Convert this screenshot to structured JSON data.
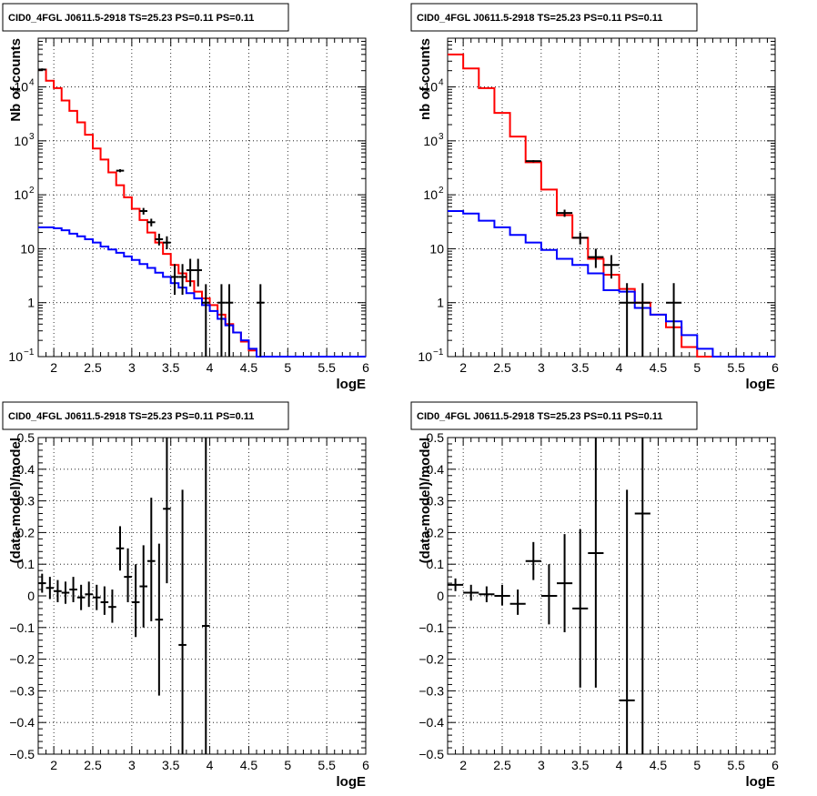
{
  "chart_data": [
    {
      "type": "line",
      "title": "CID0_4FGL J0611.5-2918 TS=25.23 PS=0.11 PS=0.11",
      "xlabel": "logE",
      "ylabel": "Nb of counts",
      "xlim": [
        1.8,
        6.0
      ],
      "ylim": [
        0.1,
        80000
      ],
      "ylog": true,
      "grid": true,
      "xticks": [
        "2",
        "2.5",
        "3",
        "3.5",
        "4",
        "4.5",
        "5",
        "5.5",
        "6"
      ],
      "yticks": [
        {
          "value": 0.1,
          "base": "10",
          "exp": "−1"
        },
        {
          "value": 1,
          "label": "1"
        },
        {
          "value": 10,
          "label": "10"
        },
        {
          "value": 100,
          "base": "10",
          "exp": "2"
        },
        {
          "value": 1000,
          "base": "10",
          "exp": "3"
        },
        {
          "value": 10000,
          "base": "10",
          "exp": "4"
        }
      ],
      "bin_edges": [
        1.8,
        1.9,
        2.0,
        2.1,
        2.2,
        2.3,
        2.4,
        2.5,
        2.6,
        2.7,
        2.8,
        2.9,
        3.0,
        3.1,
        3.2,
        3.3,
        3.4,
        3.5,
        3.6,
        3.7,
        3.8,
        3.9,
        4.0,
        4.1,
        4.2,
        4.3,
        4.4,
        4.5,
        4.6,
        4.7,
        4.8,
        4.9,
        5.0,
        5.1,
        5.2,
        5.3,
        5.4,
        5.5,
        5.6,
        5.7,
        5.8,
        5.9,
        6.0
      ],
      "series": [
        {
          "color": "#ff0000",
          "style": "step",
          "values": [
            21000,
            13000,
            9500,
            5600,
            3600,
            2200,
            1300,
            720,
            450,
            260,
            150,
            90,
            55,
            34,
            20,
            13,
            8,
            5,
            3.5,
            2.5,
            1.6,
            1.2,
            0.9,
            0.6,
            0.4,
            0.28,
            0.19,
            0.13,
            0.1,
            0.1,
            0.1,
            0.1,
            0.1,
            0.1,
            0.1,
            0.1,
            0.1,
            0.1,
            0.1,
            0.1,
            0.1,
            0.1
          ]
        },
        {
          "color": "#0000ff",
          "style": "step",
          "values": [
            25,
            25,
            24,
            22,
            19,
            17,
            15,
            13,
            11,
            9.7,
            8.4,
            7.2,
            6.2,
            5.2,
            4.4,
            3.6,
            3.0,
            2.3,
            1.9,
            1.5,
            1.2,
            0.9,
            0.7,
            0.5,
            0.38,
            0.28,
            0.2,
            0.14,
            0.1,
            0.1,
            0.1,
            0.1,
            0.1,
            0.1,
            0.1,
            0.1,
            0.1,
            0.1,
            0.1,
            0.1,
            0.1,
            0.1
          ]
        },
        {
          "color": "#000000",
          "style": "errorbar",
          "points": [
            {
              "x": 1.85,
              "y": 21000,
              "lo": 20000,
              "hi": 22000
            },
            {
              "x": 2.85,
              "y": 280,
              "lo": 262,
              "hi": 298
            },
            {
              "x": 3.15,
              "y": 50,
              "lo": 43,
              "hi": 57
            },
            {
              "x": 3.25,
              "y": 31,
              "lo": 26,
              "hi": 36
            },
            {
              "x": 3.35,
              "y": 15,
              "lo": 11.5,
              "hi": 19
            },
            {
              "x": 3.45,
              "y": 13,
              "lo": 9.8,
              "hi": 17
            },
            {
              "x": 3.55,
              "y": 3,
              "lo": 1.4,
              "hi": 5.2
            },
            {
              "x": 3.65,
              "y": 3,
              "lo": 1.4,
              "hi": 5.2
            },
            {
              "x": 3.75,
              "y": 4,
              "lo": 2,
              "hi": 6.5
            },
            {
              "x": 3.85,
              "y": 4,
              "lo": 2,
              "hi": 6.5
            },
            {
              "x": 3.95,
              "y": 1,
              "lo": 0.1,
              "hi": 2.2
            },
            {
              "x": 4.15,
              "y": 1,
              "lo": 0.1,
              "hi": 2.2
            },
            {
              "x": 4.25,
              "y": 1,
              "lo": 0.1,
              "hi": 2.2
            },
            {
              "x": 4.65,
              "y": 1,
              "lo": 0.1,
              "hi": 2.2
            }
          ]
        }
      ]
    },
    {
      "type": "line",
      "title": "CID0_4FGL J0611.5-2918 TS=25.23 PS=0.11 PS=0.11",
      "xlabel": "logE",
      "ylabel": "nb of counts",
      "xlim": [
        1.8,
        6.0
      ],
      "ylim": [
        0.1,
        80000
      ],
      "ylog": true,
      "grid": true,
      "xticks": [
        "2",
        "2.5",
        "3",
        "3.5",
        "4",
        "4.5",
        "5",
        "5.5",
        "6"
      ],
      "yticks": [
        {
          "value": 0.1,
          "base": "10",
          "exp": "−1"
        },
        {
          "value": 1,
          "label": "1"
        },
        {
          "value": 10,
          "label": "10"
        },
        {
          "value": 100,
          "base": "10",
          "exp": "2"
        },
        {
          "value": 1000,
          "base": "10",
          "exp": "3"
        },
        {
          "value": 10000,
          "base": "10",
          "exp": "4"
        }
      ],
      "bin_edges": [
        1.8,
        2.0,
        2.2,
        2.4,
        2.6,
        2.8,
        3.0,
        3.2,
        3.4,
        3.6,
        3.8,
        4.0,
        4.2,
        4.4,
        4.6,
        4.8,
        5.0,
        5.2,
        5.4,
        5.6,
        5.8,
        6.0
      ],
      "series": [
        {
          "color": "#ff0000",
          "style": "step",
          "values": [
            40000,
            22000,
            9500,
            3300,
            1200,
            400,
            125,
            42,
            16,
            6.5,
            3.3,
            1.8,
            1.0,
            0.6,
            0.35,
            0.15,
            0.1,
            0.1,
            0.1,
            0.1,
            0.1
          ]
        },
        {
          "color": "#0000ff",
          "style": "step",
          "values": [
            50,
            45,
            33,
            25,
            18,
            13,
            9.5,
            6.5,
            5,
            3.5,
            1.7,
            1.6,
            0.8,
            0.6,
            0.45,
            0.25,
            0.14,
            0.1,
            0.1,
            0.1,
            0.1
          ]
        },
        {
          "color": "#000000",
          "style": "errorbar",
          "points": [
            {
              "x": 2.9,
              "y": 420,
              "lo": 400,
              "hi": 440
            },
            {
              "x": 3.3,
              "y": 46,
              "lo": 39,
              "hi": 53
            },
            {
              "x": 3.5,
              "y": 16,
              "lo": 12,
              "hi": 20
            },
            {
              "x": 3.7,
              "y": 7,
              "lo": 4.4,
              "hi": 10
            },
            {
              "x": 3.9,
              "y": 5,
              "lo": 2.8,
              "hi": 7.6
            },
            {
              "x": 4.1,
              "y": 1,
              "lo": 0.1,
              "hi": 2.3
            },
            {
              "x": 4.3,
              "y": 1,
              "lo": 0.1,
              "hi": 2.3
            },
            {
              "x": 4.7,
              "y": 1,
              "lo": 0.1,
              "hi": 2.3
            }
          ]
        }
      ]
    },
    {
      "type": "scatter",
      "title": "CID0_4FGL J0611.5-2918 TS=25.23 PS=0.11 PS=0.11",
      "xlabel": "logE",
      "ylabel": "(data-model)/model",
      "xlim": [
        1.8,
        6.0
      ],
      "ylim": [
        -0.5,
        0.5
      ],
      "grid": true,
      "xticks": [
        "2",
        "2.5",
        "3",
        "3.5",
        "4",
        "4.5",
        "5",
        "5.5",
        "6"
      ],
      "yticks": [
        "−0.5",
        "−0.4",
        "−0.3",
        "−0.2",
        "−0.1",
        "0",
        "0.1",
        "0.2",
        "0.3",
        "0.4",
        "0.5"
      ],
      "halfwidth": 0.05,
      "points": [
        {
          "x": 1.85,
          "y": 0.04,
          "lo": 0.01,
          "hi": 0.07
        },
        {
          "x": 1.95,
          "y": 0.025,
          "lo": -0.01,
          "hi": 0.06
        },
        {
          "x": 2.05,
          "y": 0.015,
          "lo": -0.02,
          "hi": 0.05
        },
        {
          "x": 2.15,
          "y": 0.01,
          "lo": -0.025,
          "hi": 0.045
        },
        {
          "x": 2.25,
          "y": 0.02,
          "lo": -0.02,
          "hi": 0.06
        },
        {
          "x": 2.35,
          "y": -0.005,
          "lo": -0.045,
          "hi": 0.035
        },
        {
          "x": 2.45,
          "y": 0.005,
          "lo": -0.035,
          "hi": 0.045
        },
        {
          "x": 2.55,
          "y": -0.005,
          "lo": -0.045,
          "hi": 0.035
        },
        {
          "x": 2.65,
          "y": -0.02,
          "lo": -0.06,
          "hi": 0.03
        },
        {
          "x": 2.75,
          "y": -0.035,
          "lo": -0.085,
          "hi": 0.02
        },
        {
          "x": 2.85,
          "y": 0.15,
          "lo": 0.08,
          "hi": 0.22
        },
        {
          "x": 2.95,
          "y": 0.06,
          "lo": -0.02,
          "hi": 0.15
        },
        {
          "x": 3.05,
          "y": -0.02,
          "lo": -0.13,
          "hi": 0.1
        },
        {
          "x": 3.15,
          "y": 0.03,
          "lo": -0.1,
          "hi": 0.16
        },
        {
          "x": 3.25,
          "y": 0.11,
          "lo": -0.08,
          "hi": 0.31
        },
        {
          "x": 3.35,
          "y": -0.075,
          "lo": -0.315,
          "hi": 0.165
        },
        {
          "x": 3.45,
          "y": 0.275,
          "lo": 0.04,
          "hi": 0.5
        },
        {
          "x": 3.65,
          "y": -0.155,
          "lo": -0.5,
          "hi": 0.335
        },
        {
          "x": 3.95,
          "y": -0.095,
          "lo": -0.5,
          "hi": 0.5
        }
      ]
    },
    {
      "type": "scatter",
      "title": "CID0_4FGL J0611.5-2918 TS=25.23 PS=0.11 PS=0.11",
      "xlabel": "logE",
      "ylabel": "(data-model)/model",
      "xlim": [
        1.8,
        6.0
      ],
      "ylim": [
        -0.5,
        0.5
      ],
      "grid": true,
      "xticks": [
        "2",
        "2.5",
        "3",
        "3.5",
        "4",
        "4.5",
        "5",
        "5.5",
        "6"
      ],
      "yticks": [
        "−0.5",
        "−0.4",
        "−0.3",
        "−0.2",
        "−0.1",
        "0",
        "0.1",
        "0.2",
        "0.3",
        "0.4",
        "0.5"
      ],
      "halfwidth": 0.1,
      "points": [
        {
          "x": 1.9,
          "y": 0.035,
          "lo": 0.015,
          "hi": 0.055
        },
        {
          "x": 2.1,
          "y": 0.01,
          "lo": -0.015,
          "hi": 0.035
        },
        {
          "x": 2.3,
          "y": 0.005,
          "lo": -0.02,
          "hi": 0.03
        },
        {
          "x": 2.5,
          "y": 0.0,
          "lo": -0.03,
          "hi": 0.035
        },
        {
          "x": 2.7,
          "y": -0.025,
          "lo": -0.06,
          "hi": 0.02
        },
        {
          "x": 2.9,
          "y": 0.11,
          "lo": 0.05,
          "hi": 0.17
        },
        {
          "x": 3.1,
          "y": 0.0,
          "lo": -0.09,
          "hi": 0.1
        },
        {
          "x": 3.3,
          "y": 0.04,
          "lo": -0.115,
          "hi": 0.195
        },
        {
          "x": 3.5,
          "y": -0.04,
          "lo": -0.29,
          "hi": 0.21
        },
        {
          "x": 3.7,
          "y": 0.135,
          "lo": -0.29,
          "hi": 0.5
        },
        {
          "x": 4.1,
          "y": -0.33,
          "lo": -0.5,
          "hi": 0.335
        },
        {
          "x": 4.3,
          "y": 0.26,
          "lo": -0.5,
          "hi": 0.5
        }
      ]
    }
  ]
}
